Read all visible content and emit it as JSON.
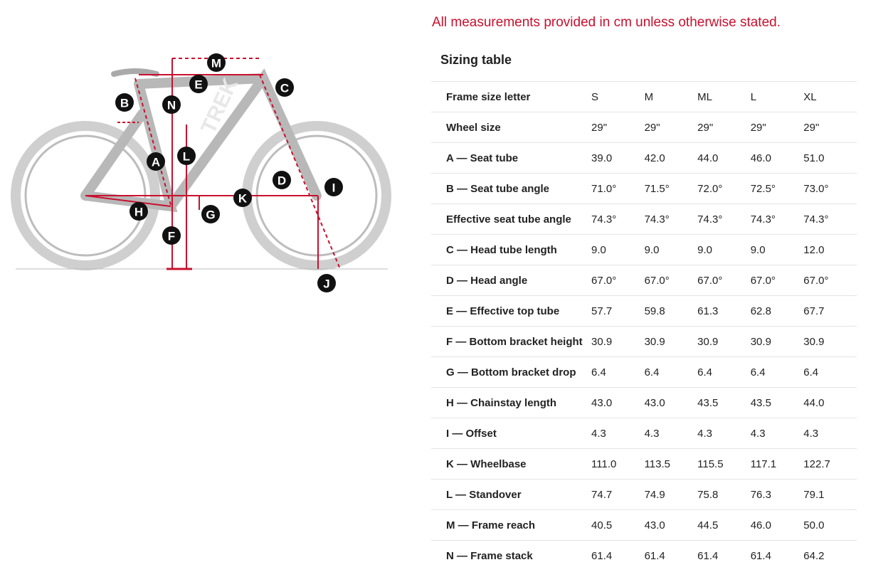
{
  "note": "All measurements provided in cm unless otherwise stated.",
  "table_title": "Sizing table",
  "header": {
    "label": "Frame size letter",
    "sizes": [
      "S",
      "M",
      "ML",
      "L",
      "XL"
    ]
  },
  "rows": [
    {
      "label": "Wheel size",
      "values": [
        "29\"",
        "29\"",
        "29\"",
        "29\"",
        "29\""
      ]
    },
    {
      "label": "A — Seat tube",
      "values": [
        "39.0",
        "42.0",
        "44.0",
        "46.0",
        "51.0"
      ]
    },
    {
      "label": "B — Seat tube angle",
      "values": [
        "71.0°",
        "71.5°",
        "72.0°",
        "72.5°",
        "73.0°"
      ]
    },
    {
      "label": "Effective seat tube angle",
      "values": [
        "74.3°",
        "74.3°",
        "74.3°",
        "74.3°",
        "74.3°"
      ]
    },
    {
      "label": "C — Head tube length",
      "values": [
        "9.0",
        "9.0",
        "9.0",
        "9.0",
        "12.0"
      ]
    },
    {
      "label": "D — Head angle",
      "values": [
        "67.0°",
        "67.0°",
        "67.0°",
        "67.0°",
        "67.0°"
      ]
    },
    {
      "label": "E — Effective top tube",
      "values": [
        "57.7",
        "59.8",
        "61.3",
        "62.8",
        "67.7"
      ]
    },
    {
      "label": "F — Bottom bracket height",
      "values": [
        "30.9",
        "30.9",
        "30.9",
        "30.9",
        "30.9"
      ]
    },
    {
      "label": "G — Bottom bracket drop",
      "values": [
        "6.4",
        "6.4",
        "6.4",
        "6.4",
        "6.4"
      ]
    },
    {
      "label": "H — Chainstay length",
      "values": [
        "43.0",
        "43.0",
        "43.5",
        "43.5",
        "44.0"
      ]
    },
    {
      "label": "I — Offset",
      "values": [
        "4.3",
        "4.3",
        "4.3",
        "4.3",
        "4.3"
      ]
    },
    {
      "label": "K — Wheelbase",
      "values": [
        "111.0",
        "113.5",
        "115.5",
        "117.1",
        "122.7"
      ]
    },
    {
      "label": "L — Standover",
      "values": [
        "74.7",
        "74.9",
        "75.8",
        "76.3",
        "79.1"
      ]
    },
    {
      "label": "M — Frame reach",
      "values": [
        "40.5",
        "43.0",
        "44.5",
        "46.0",
        "50.0"
      ]
    },
    {
      "label": "N — Frame stack",
      "values": [
        "61.4",
        "61.4",
        "61.4",
        "61.4",
        "64.2"
      ]
    }
  ],
  "diagram": {
    "letters": [
      "M",
      "E",
      "C",
      "B",
      "N",
      "A",
      "L",
      "D",
      "I",
      "K",
      "H",
      "G",
      "F",
      "J"
    ],
    "frame_logo": "TREK",
    "colors": {
      "measure": "#c8102e",
      "bike": "#c9c9c9",
      "badge": "#111111"
    }
  }
}
